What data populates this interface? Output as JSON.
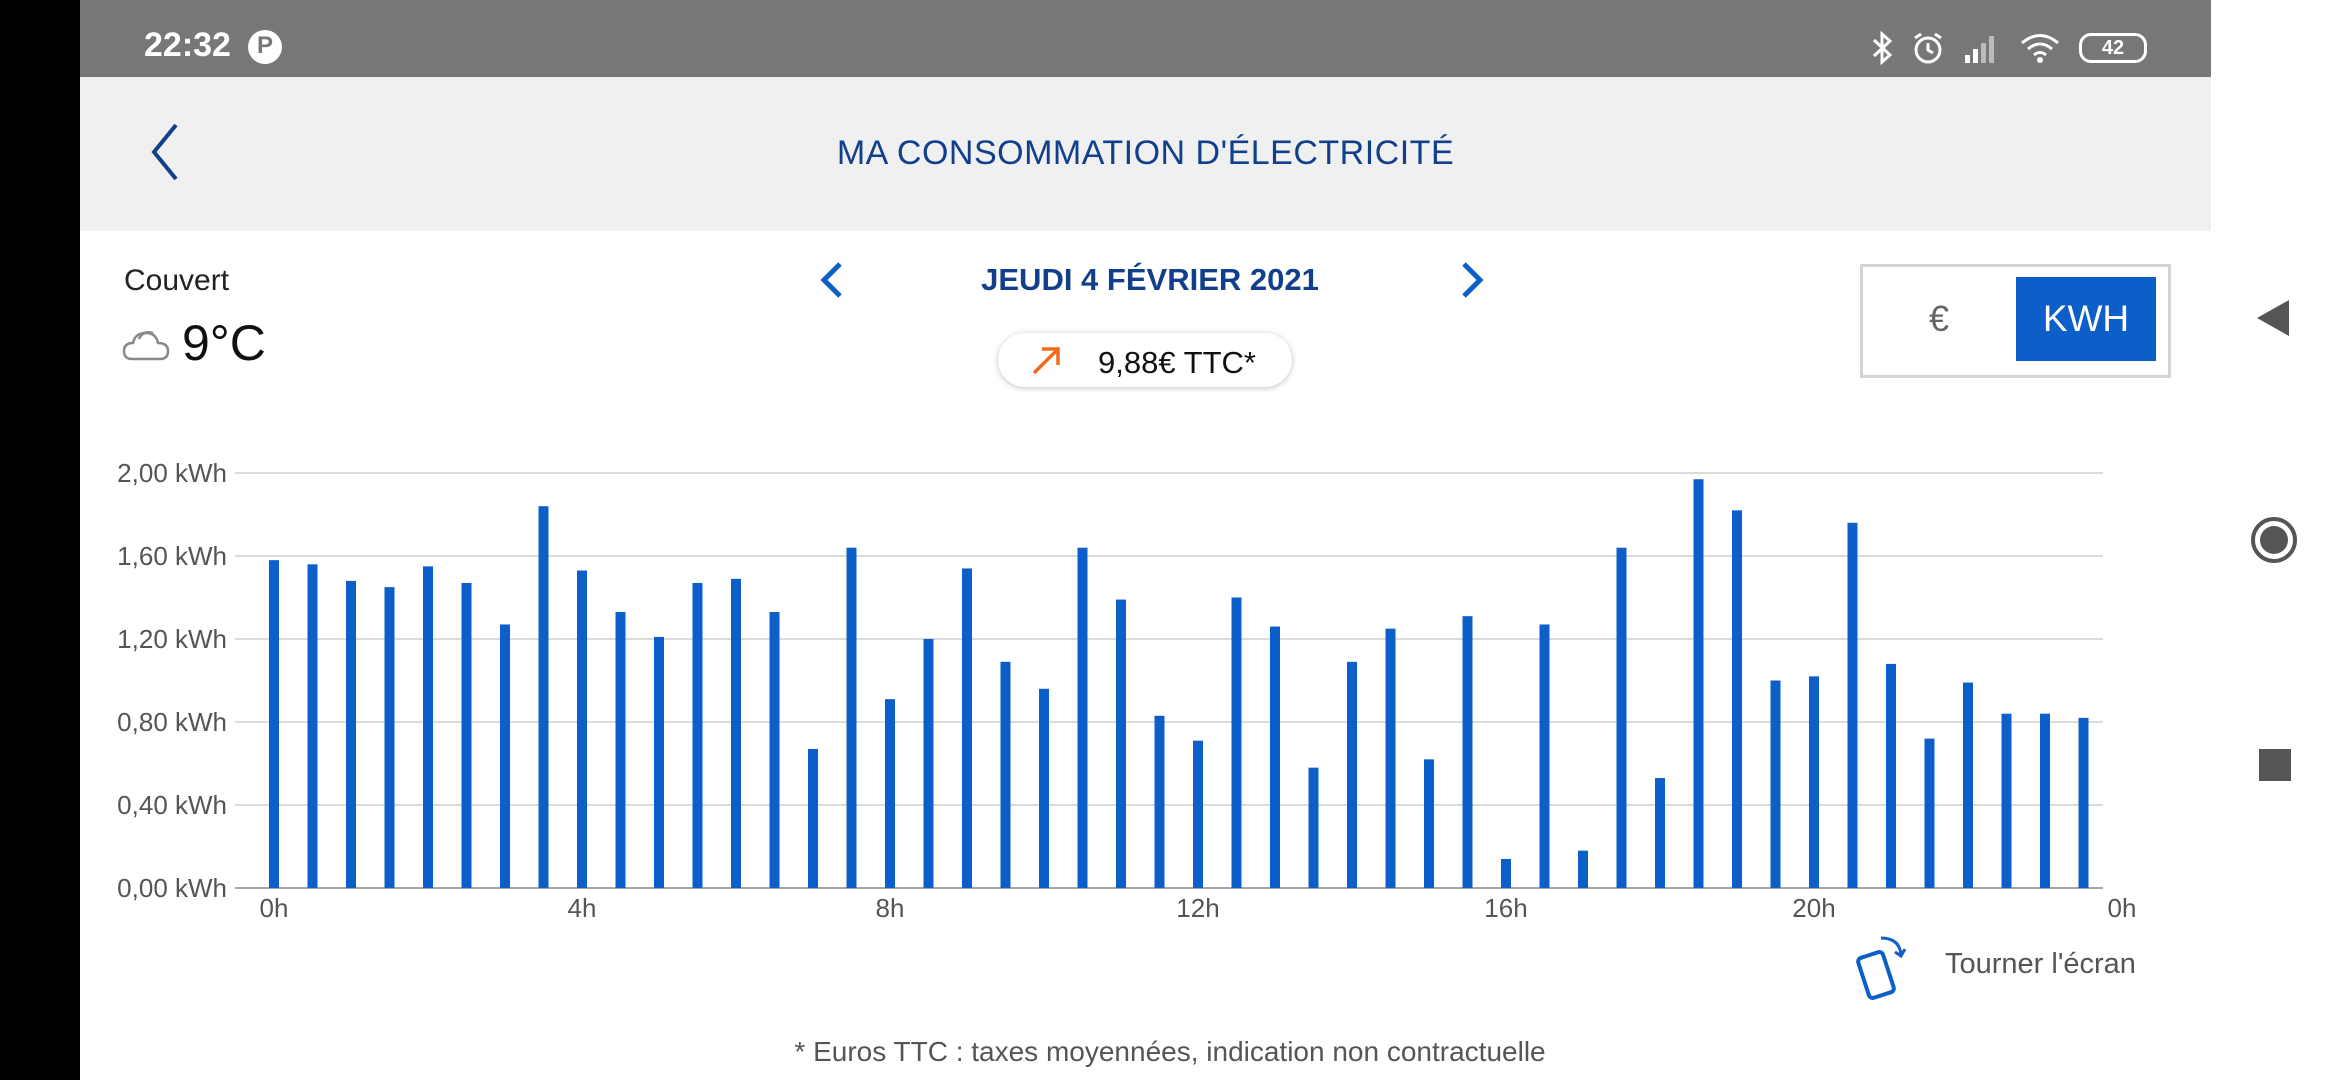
{
  "status_bar": {
    "time": "22:32",
    "battery": "42"
  },
  "header": {
    "title": "MA CONSOMMATION D'ÉLECTRICITÉ"
  },
  "weather": {
    "condition": "Couvert",
    "temperature": "9°C"
  },
  "date_nav": {
    "date": "JEUDI 4 FÉVRIER 2021"
  },
  "cost": {
    "value": "9,88€ TTC*",
    "trend": "up"
  },
  "unit_toggle": {
    "euro_label": "€",
    "kwh_label": "KWH",
    "selected": "KWH"
  },
  "colors": {
    "accent": "#0c5fc8",
    "title": "#113f8c",
    "trend_up": "#f26b1d"
  },
  "chart_data": {
    "type": "bar",
    "x": [
      "0h",
      "0h30",
      "1h",
      "1h30",
      "2h",
      "2h30",
      "3h",
      "3h30",
      "4h",
      "4h30",
      "5h",
      "5h30",
      "6h",
      "6h30",
      "7h",
      "7h30",
      "8h",
      "8h30",
      "9h",
      "9h30",
      "10h",
      "10h30",
      "11h",
      "11h30",
      "12h",
      "12h30",
      "13h",
      "13h30",
      "14h",
      "14h30",
      "15h",
      "15h30",
      "16h",
      "16h30",
      "17h",
      "17h30",
      "18h",
      "18h30",
      "19h",
      "19h30",
      "20h",
      "20h30",
      "21h",
      "21h30",
      "22h",
      "22h30",
      "23h",
      "23h30"
    ],
    "values": [
      1.58,
      1.56,
      1.48,
      1.45,
      1.55,
      1.47,
      1.27,
      1.84,
      1.53,
      1.33,
      1.21,
      1.47,
      1.49,
      1.33,
      0.67,
      1.64,
      0.91,
      1.2,
      1.54,
      1.09,
      0.96,
      1.64,
      1.39,
      0.83,
      0.71,
      1.4,
      1.26,
      0.58,
      1.09,
      1.25,
      0.62,
      1.31,
      0.14,
      1.27,
      0.18,
      1.64,
      0.53,
      1.97,
      1.82,
      1.0,
      1.02,
      1.76,
      1.08,
      0.72,
      0.99,
      0.84,
      0.84,
      0.82
    ],
    "x_tick_labels": [
      "0h",
      "4h",
      "8h",
      "12h",
      "16h",
      "20h",
      "0h"
    ],
    "y_tick_labels": [
      "0,00 kWh",
      "0,40 kWh",
      "0,80 kWh",
      "1,20 kWh",
      "1,60 kWh",
      "2,00 kWh"
    ],
    "ylim": [
      0,
      2.0
    ],
    "grid": true
  },
  "rotate_hint": {
    "label": "Tourner l'écran"
  },
  "footnote": "* Euros TTC : taxes moyennées, indication non contractuelle"
}
